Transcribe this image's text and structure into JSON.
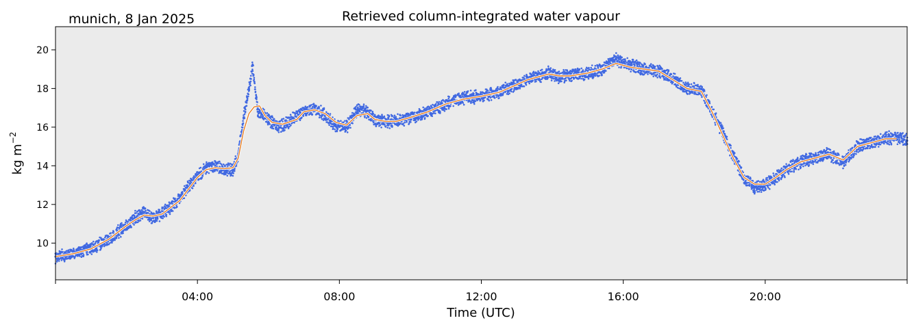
{
  "location_date": "munich, 8 Jan 2025",
  "chart_data": {
    "type": "line",
    "title": "Retrieved column-integrated water vapour",
    "xlabel": "Time (UTC)",
    "ylabel": "kg m",
    "ylabel_exp": "−2",
    "xlim": [
      0,
      24
    ],
    "ylim": [
      8.1,
      21.2
    ],
    "x_ticks": [
      4,
      8,
      12,
      16,
      20
    ],
    "x_tick_labels": [
      "04:00",
      "08:00",
      "12:00",
      "16:00",
      "20:00"
    ],
    "y_ticks": [
      10,
      12,
      14,
      16,
      18,
      20
    ],
    "y_tick_labels": [
      "10",
      "12",
      "14",
      "16",
      "18",
      "20"
    ],
    "grid": false,
    "background": "#ebebeb",
    "series": [
      {
        "kind": "scatter",
        "color": "#4169e1",
        "x": [
          0.0,
          0.5,
          1.0,
          1.5,
          2.0,
          2.25,
          2.5,
          2.75,
          3.0,
          3.5,
          4.0,
          4.25,
          4.5,
          4.75,
          5.0,
          5.15,
          5.3,
          5.45,
          5.55,
          5.7,
          5.85,
          6.0,
          6.3,
          6.6,
          7.0,
          7.3,
          7.6,
          7.9,
          8.2,
          8.5,
          8.75,
          9.0,
          9.3,
          9.6,
          10.0,
          10.5,
          11.0,
          11.5,
          12.0,
          12.5,
          13.0,
          13.3,
          13.6,
          13.9,
          14.2,
          14.5,
          15.0,
          15.4,
          15.8,
          16.2,
          16.6,
          17.0,
          17.4,
          17.8,
          18.2,
          18.5,
          18.8,
          19.1,
          19.4,
          19.7,
          20.0,
          20.3,
          20.6,
          21.0,
          21.4,
          21.8,
          22.2,
          22.6,
          23.0,
          23.4,
          23.7,
          24.0
        ],
        "y": [
          9.3,
          9.45,
          9.7,
          10.2,
          10.9,
          11.3,
          11.6,
          11.3,
          11.5,
          12.3,
          13.5,
          13.9,
          14.0,
          13.8,
          13.8,
          14.5,
          16.5,
          18.0,
          19.2,
          16.8,
          16.6,
          16.4,
          16.0,
          16.3,
          16.8,
          17.0,
          16.6,
          16.1,
          16.0,
          16.9,
          16.8,
          16.4,
          16.3,
          16.3,
          16.5,
          16.8,
          17.2,
          17.5,
          17.6,
          17.8,
          18.2,
          18.5,
          18.6,
          18.8,
          18.6,
          18.7,
          18.8,
          19.0,
          19.5,
          19.2,
          19.0,
          18.9,
          18.5,
          18.0,
          17.9,
          16.8,
          15.7,
          14.5,
          13.4,
          12.9,
          13.0,
          13.4,
          13.8,
          14.2,
          14.4,
          14.6,
          14.2,
          15.0,
          15.2,
          15.4,
          15.5,
          15.3
        ]
      },
      {
        "kind": "line",
        "color": "#e67e22",
        "x": [
          0.0,
          0.5,
          1.0,
          1.5,
          2.0,
          2.25,
          2.5,
          2.75,
          3.0,
          3.5,
          4.0,
          4.25,
          4.5,
          4.75,
          5.0,
          5.15,
          5.3,
          5.45,
          5.6,
          5.75,
          5.9,
          6.1,
          6.4,
          6.8,
          7.0,
          7.3,
          7.6,
          7.9,
          8.2,
          8.5,
          8.8,
          9.0,
          9.3,
          9.6,
          10.0,
          10.5,
          11.0,
          11.5,
          12.0,
          12.5,
          13.0,
          13.3,
          13.6,
          13.9,
          14.2,
          14.5,
          15.0,
          15.4,
          15.8,
          16.2,
          16.6,
          17.0,
          17.4,
          17.8,
          18.2,
          18.5,
          18.8,
          19.1,
          19.4,
          19.7,
          20.0,
          20.3,
          20.6,
          21.0,
          21.4,
          21.8,
          22.2,
          22.6,
          23.0,
          23.4,
          23.7
        ],
        "y": [
          9.3,
          9.45,
          9.7,
          10.2,
          10.9,
          11.2,
          11.45,
          11.4,
          11.5,
          12.2,
          13.4,
          13.8,
          13.9,
          13.85,
          13.9,
          14.4,
          15.8,
          16.7,
          17.05,
          17.1,
          16.6,
          16.25,
          16.15,
          16.4,
          16.8,
          16.9,
          16.7,
          16.25,
          16.1,
          16.6,
          16.7,
          16.4,
          16.3,
          16.3,
          16.5,
          16.8,
          17.2,
          17.45,
          17.6,
          17.8,
          18.2,
          18.45,
          18.6,
          18.75,
          18.65,
          18.65,
          18.8,
          19.0,
          19.3,
          19.1,
          19.0,
          18.9,
          18.45,
          18.0,
          17.85,
          16.8,
          15.6,
          14.4,
          13.4,
          13.05,
          13.05,
          13.4,
          13.8,
          14.2,
          14.4,
          14.6,
          14.3,
          15.0,
          15.2,
          15.4,
          15.4
        ]
      }
    ]
  }
}
